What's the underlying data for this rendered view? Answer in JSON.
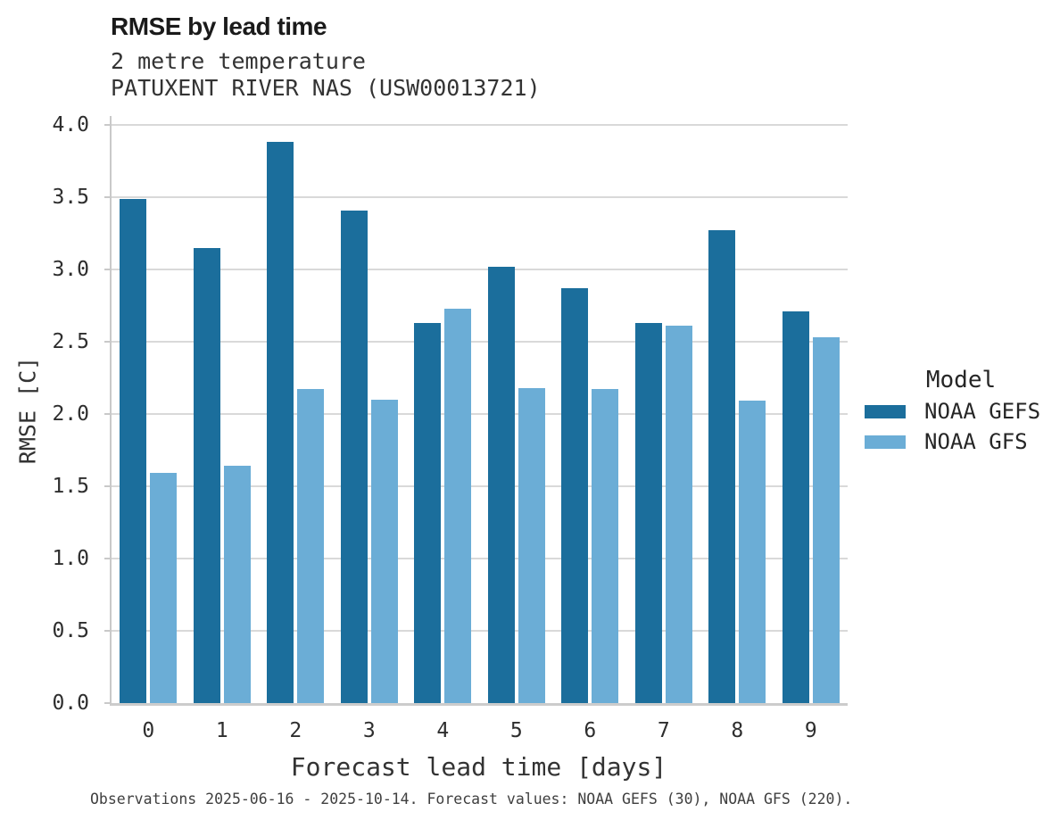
{
  "header": {
    "title": "RMSE by lead time",
    "subtitle_line1": "2 metre temperature",
    "subtitle_line2": "PATUXENT RIVER NAS (USW00013721)"
  },
  "chart_data": {
    "type": "bar",
    "title": "RMSE by lead time",
    "subtitle": [
      "2 metre temperature",
      "PATUXENT RIVER NAS (USW00013721)"
    ],
    "categories": [
      "0",
      "1",
      "2",
      "3",
      "4",
      "5",
      "6",
      "7",
      "8",
      "9"
    ],
    "series": [
      {
        "name": "NOAA GEFS",
        "color": "#1b6e9c",
        "values": [
          3.49,
          3.15,
          3.88,
          3.41,
          2.63,
          3.02,
          2.87,
          2.63,
          3.27,
          2.71
        ]
      },
      {
        "name": "NOAA GFS",
        "color": "#6badd6",
        "values": [
          1.59,
          1.64,
          2.17,
          2.1,
          2.73,
          2.18,
          2.17,
          2.61,
          2.09,
          2.53
        ]
      }
    ],
    "xlabel": "Forecast lead time [days]",
    "ylabel": "RMSE [C]",
    "ylim": [
      0.0,
      4.08
    ],
    "yticks": [
      0.0,
      0.5,
      1.0,
      1.5,
      2.0,
      2.5,
      3.0,
      3.5,
      4.0
    ],
    "grid": true,
    "legend_title": "Model",
    "legend_position": "right",
    "grid_color": "#d9d9d9",
    "spine_color": "#c9c9c9"
  },
  "footer": {
    "caption": "Observations 2025-06-16 - 2025-10-14. Forecast values: NOAA GEFS (30), NOAA GFS (220)."
  }
}
